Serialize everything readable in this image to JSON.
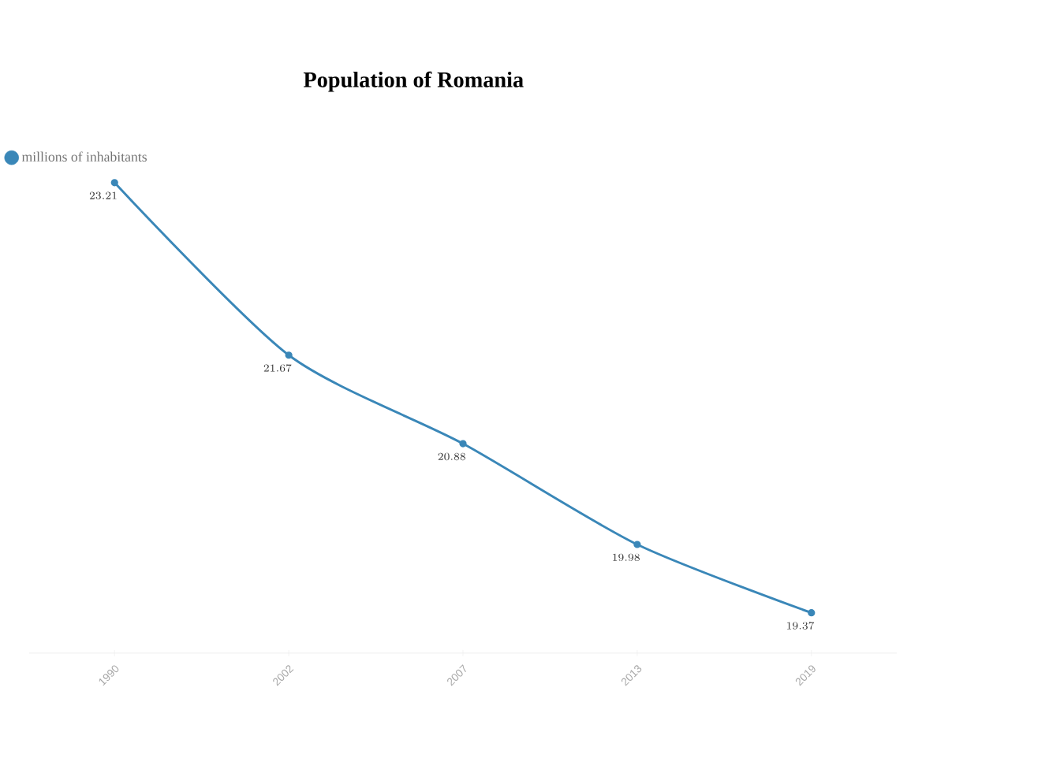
{
  "chart_data": {
    "type": "line",
    "title": "Population of Romania",
    "categories": [
      "1990",
      "2002",
      "2007",
      "2013",
      "2019"
    ],
    "series": [
      {
        "name": "millions of inhabitants",
        "color": "#3a87b8",
        "values": [
          23.21,
          21.67,
          20.88,
          19.98,
          19.37
        ]
      }
    ],
    "data_labels": true,
    "legend": "top left",
    "marker": "circle",
    "line_style": "solid",
    "grid": false,
    "tick_labels": "x"
  }
}
